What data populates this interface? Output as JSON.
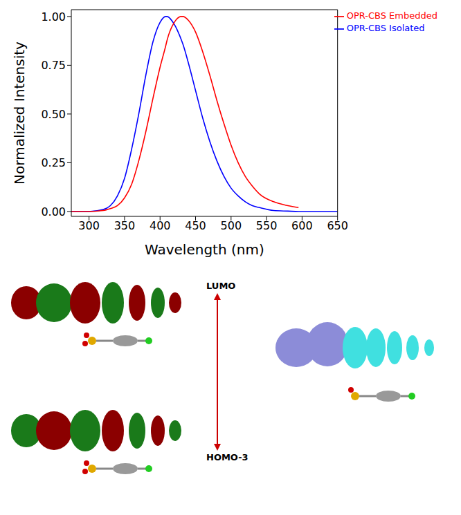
{
  "chart_data": {
    "type": "line",
    "x_label": "Wavelength (nm)",
    "y_label": "Normalized Intensity",
    "x": [
      275,
      300,
      320,
      330,
      340,
      350,
      360,
      370,
      380,
      390,
      400,
      408,
      410,
      420,
      430,
      432,
      440,
      450,
      460,
      470,
      480,
      490,
      500,
      510,
      520,
      530,
      540,
      560,
      580,
      595,
      600,
      650
    ],
    "series": [
      {
        "name": "OPR-CBS Isolated",
        "color": "#0000ff",
        "values": [
          0,
          0,
          0.01,
          0.03,
          0.08,
          0.17,
          0.32,
          0.5,
          0.7,
          0.87,
          0.97,
          1.0,
          1.0,
          0.96,
          0.88,
          0.86,
          0.76,
          0.62,
          0.48,
          0.36,
          0.26,
          0.18,
          0.12,
          0.08,
          0.05,
          0.03,
          0.02,
          0.005,
          0.002,
          0,
          0,
          0
        ]
      },
      {
        "name": "OPR-CBS Embedded",
        "color": "#ff0000",
        "values": [
          0,
          0,
          0.005,
          0.015,
          0.03,
          0.07,
          0.14,
          0.26,
          0.41,
          0.58,
          0.74,
          0.85,
          0.88,
          0.97,
          1.0,
          1.0,
          0.98,
          0.92,
          0.82,
          0.7,
          0.57,
          0.45,
          0.34,
          0.25,
          0.18,
          0.13,
          0.09,
          0.05,
          0.03,
          0.02,
          null,
          null
        ]
      }
    ],
    "xlim": [
      275,
      650
    ],
    "xticks": [
      300,
      350,
      400,
      450,
      500,
      550,
      600,
      650
    ],
    "ylim": [
      -0.025,
      1.035
    ],
    "yticks": [
      {
        "value": 0,
        "label": "0.00"
      },
      {
        "value": 0.25,
        "label": "0.25"
      },
      {
        "value": 0.5,
        "label": "0.50"
      },
      {
        "value": 0.75,
        "label": "0.75"
      },
      {
        "value": 1,
        "label": "1.00"
      }
    ],
    "grid": false,
    "legend": "upper right",
    "annotations": [
      "LUMO",
      "HOMO-3"
    ]
  }
}
